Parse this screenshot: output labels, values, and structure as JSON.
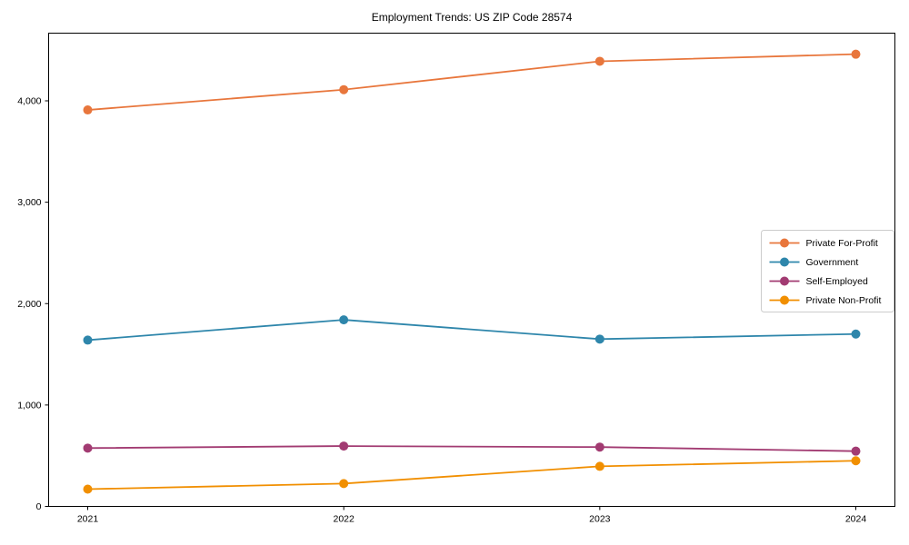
{
  "chart_data": {
    "type": "line",
    "title": "Employment Trends: US ZIP Code 28574",
    "xlabel": "",
    "ylabel": "",
    "x": [
      "2021",
      "2022",
      "2023",
      "2024"
    ],
    "ylim": [
      0,
      4670
    ],
    "yticks": [
      0,
      1000,
      2000,
      3000,
      4000
    ],
    "ytick_labels": [
      "0",
      "1,000",
      "2,000",
      "3,000",
      "4,000"
    ],
    "grid": false,
    "legend_position": "center-right",
    "legend_background": "#ffffff",
    "legend_border_color": "#cccccc",
    "axis_color": "#000000",
    "series": [
      {
        "name": "Private For-Profit",
        "color": "#E8763C",
        "marker": "circle",
        "values": [
          3910,
          4110,
          4390,
          4460
        ]
      },
      {
        "name": "Government",
        "color": "#2E86AB",
        "marker": "circle",
        "values": [
          1640,
          1840,
          1650,
          1700
        ]
      },
      {
        "name": "Self-Employed",
        "color": "#A23B72",
        "marker": "circle",
        "values": [
          575,
          595,
          585,
          545
        ]
      },
      {
        "name": "Private Non-Profit",
        "color": "#F18F01",
        "marker": "circle",
        "values": [
          170,
          225,
          395,
          450
        ]
      }
    ]
  }
}
